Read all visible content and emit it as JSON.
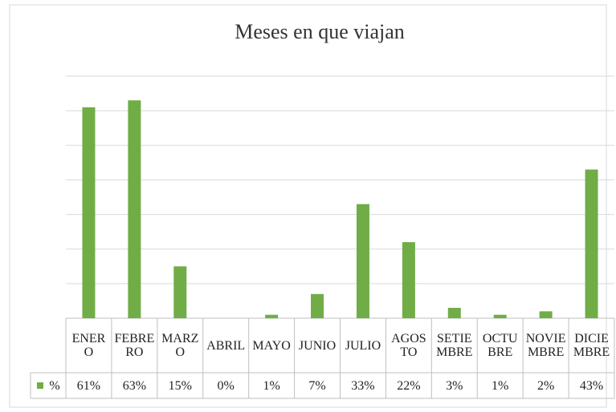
{
  "chart_data": {
    "type": "bar",
    "title": "Meses en que viajan",
    "categories": [
      "ENERO",
      "FEBRERO",
      "MARZO",
      "ABRIL",
      "MAYO",
      "JUNIO",
      "JULIO",
      "AGOSTO",
      "SETIEMBRE",
      "OCTUBRE",
      "NOVIEMBRE",
      "DICIEMBRE"
    ],
    "series": [
      {
        "name": "%",
        "color": "#70ad47",
        "values": [
          61,
          63,
          15,
          0,
          1,
          7,
          33,
          22,
          3,
          1,
          2,
          43
        ],
        "value_labels": [
          "61%",
          "63%",
          "15%",
          "0%",
          "1%",
          "7%",
          "33%",
          "22%",
          "3%",
          "1%",
          "2%",
          "43%"
        ]
      }
    ],
    "ylim": [
      0,
      70
    ],
    "yticks": [
      0,
      10,
      20,
      30,
      40,
      50,
      60,
      70
    ],
    "grid": true
  }
}
